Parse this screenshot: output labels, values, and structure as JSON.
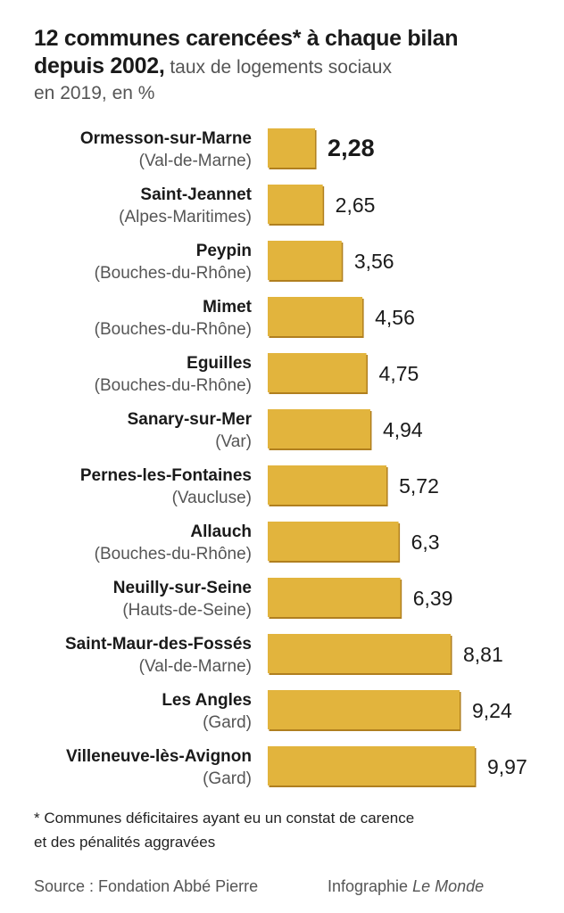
{
  "title": {
    "line1": "12 communes carencées* à chaque bilan",
    "line2_bold": "depuis 2002,",
    "line2_rest": " taux de logements sociaux",
    "line3": "en 2019, en %"
  },
  "chart_data": {
    "type": "bar",
    "orientation": "horizontal",
    "categories": [
      "Ormesson-sur-Marne",
      "Saint-Jeannet",
      "Peypin",
      "Mimet",
      "Eguilles",
      "Sanary-sur-Mer",
      "Pernes-les-Fontaines",
      "Allauch",
      "Neuilly-sur-Seine",
      "Saint-Maur-des-Fossés",
      "Les Angles",
      "Villeneuve-lès-Avignon"
    ],
    "subcategories": [
      "(Val-de-Marne)",
      "(Alpes-Maritimes)",
      "(Bouches-du-Rhône)",
      "(Bouches-du-Rhône)",
      "(Bouches-du-Rhône)",
      "(Var)",
      "(Vaucluse)",
      "(Bouches-du-Rhône)",
      "(Hauts-de-Seine)",
      "(Val-de-Marne)",
      "(Gard)",
      "(Gard)"
    ],
    "values": [
      2.28,
      2.65,
      3.56,
      4.56,
      4.75,
      4.94,
      5.72,
      6.3,
      6.39,
      8.81,
      9.24,
      9.97
    ],
    "value_labels": [
      "2,28",
      "2,65",
      "3,56",
      "4,56",
      "4,75",
      "4,94",
      "5,72",
      "6,3",
      "6,39",
      "8,81",
      "9,24",
      "9,97"
    ],
    "highlight_index": 0,
    "xlim": [
      0,
      9.97
    ],
    "bar_color": "#e2b43d",
    "bar_shadow_color": "#b07f1f"
  },
  "footnote": {
    "line1": "* Communes déficitaires ayant eu un constat de carence",
    "line2": "et des pénalités aggravées"
  },
  "source": "Source : Fondation Abbé Pierre",
  "credit": {
    "prefix": "Infographie ",
    "outlet": "Le Monde"
  }
}
